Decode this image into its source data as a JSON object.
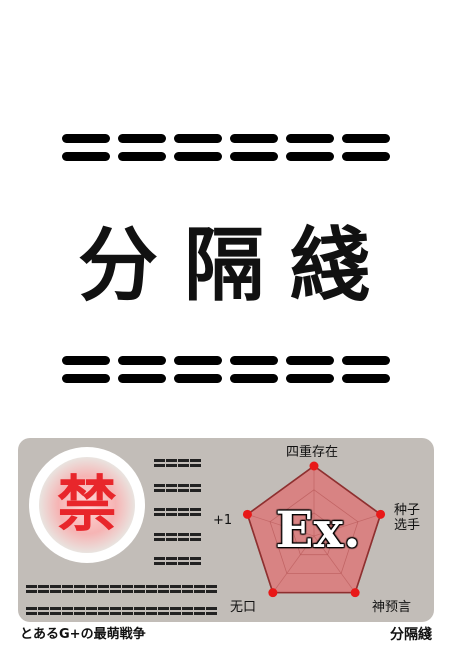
{
  "card": {
    "title": "分隔綫",
    "emblem_label": "禁",
    "grade_label": "Ex.",
    "footer_series": "とあるG+の最萌戦争",
    "footer_name": "分隔綫"
  },
  "decor": {
    "dash_count": 6,
    "mini_dash_count": 5,
    "long_dash_count": 2
  },
  "radar": {
    "axes": [
      {
        "label": "四重存在",
        "value": 1.0
      },
      {
        "label": "种子\n选手",
        "value": 1.0
      },
      {
        "label": "神预言",
        "value": 1.0
      },
      {
        "label": "无口",
        "value": 1.0
      },
      {
        "label": "+1",
        "value": 1.0
      }
    ]
  },
  "colors": {
    "panel": "#c2bdb8",
    "emblem_red": "#e8262b",
    "radar_fill": "#d06a6a",
    "vertex_dot": "#e81818"
  }
}
